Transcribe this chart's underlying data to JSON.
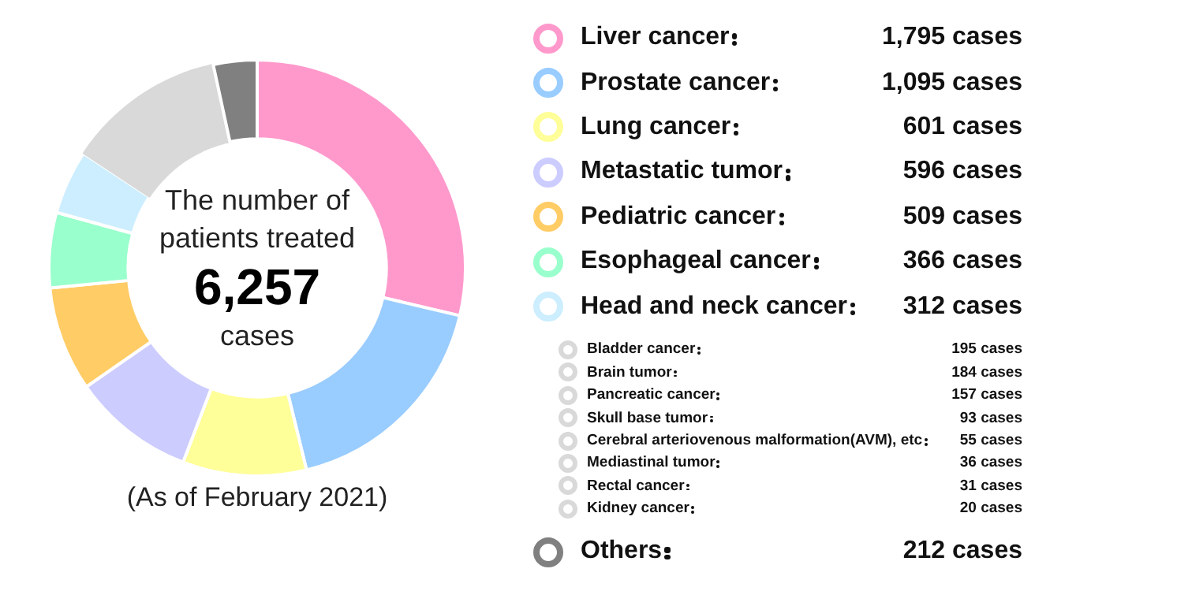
{
  "chart_data": {
    "type": "donut",
    "title": "The number of patients treated",
    "categories": [
      "Liver cancer",
      "Prostate cancer",
      "Lung cancer",
      "Metastatic tumor",
      "Pediatric cancer",
      "Esophageal cancer",
      "Head and neck cancer",
      "Bladder cancer",
      "Brain tumor",
      "Pancreatic cancer",
      "Skull base tumor",
      "Cerebral arteriovenous malformation(AVM), etc",
      "Mediastinal tumor",
      "Rectal cancer",
      "Kidney cancer",
      "Others"
    ],
    "values": [
      1795,
      1095,
      601,
      596,
      509,
      366,
      312,
      195,
      184,
      157,
      93,
      55,
      36,
      31,
      20,
      212
    ],
    "value_labels": [
      "1,795 cases",
      "1,095 cases",
      "601 cases",
      "596 cases",
      "509 cases",
      "366 cases",
      "312 cases",
      "195 cases",
      "184 cases",
      "157 cases",
      "93 cases",
      "55 cases",
      "36 cases",
      "31 cases",
      "20 cases",
      "212 cases"
    ],
    "colors": [
      "#ff99cc",
      "#99ccff",
      "#ffff99",
      "#ccccff",
      "#ffcc66",
      "#99ffcc",
      "#cceeff",
      "#d9d9d9",
      "#d9d9d9",
      "#d9d9d9",
      "#d9d9d9",
      "#d9d9d9",
      "#d9d9d9",
      "#d9d9d9",
      "#d9d9d9",
      "#808080"
    ],
    "legend": "right",
    "annotations": [
      "6,257",
      "cases",
      "(As of February 2021)"
    ]
  }
}
